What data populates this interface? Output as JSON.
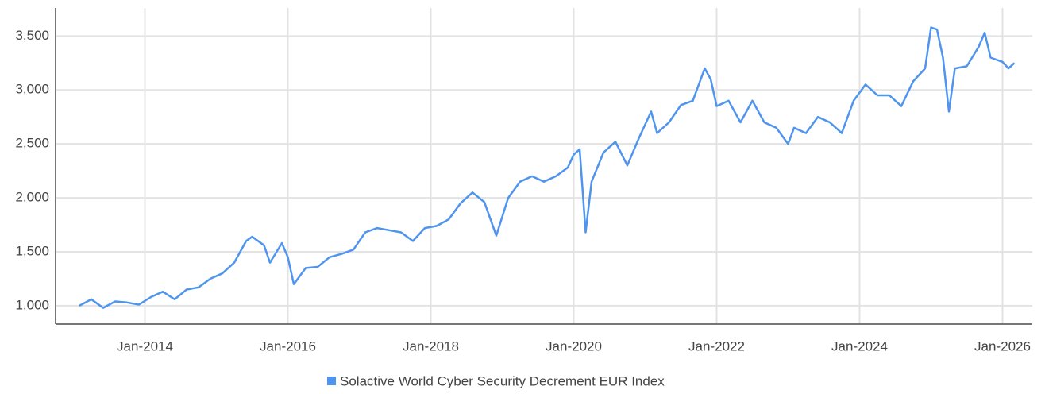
{
  "chart_data": {
    "type": "line",
    "x": [
      "2013-02",
      "2013-04",
      "2013-06",
      "2013-08",
      "2013-10",
      "2013-12",
      "2014-02",
      "2014-04",
      "2014-06",
      "2014-08",
      "2014-10",
      "2014-12",
      "2015-02",
      "2015-04",
      "2015-06",
      "2015-07",
      "2015-09",
      "2015-10",
      "2015-12",
      "2016-01",
      "2016-02",
      "2016-04",
      "2016-06",
      "2016-08",
      "2016-10",
      "2016-12",
      "2017-02",
      "2017-04",
      "2017-06",
      "2017-08",
      "2017-10",
      "2017-12",
      "2018-02",
      "2018-04",
      "2018-06",
      "2018-08",
      "2018-10",
      "2018-12",
      "2019-02",
      "2019-04",
      "2019-06",
      "2019-08",
      "2019-10",
      "2019-12",
      "2020-01",
      "2020-02",
      "2020-03",
      "2020-04",
      "2020-06",
      "2020-08",
      "2020-10",
      "2020-12",
      "2021-02",
      "2021-03",
      "2021-05",
      "2021-07",
      "2021-09",
      "2021-11",
      "2021-12",
      "2022-01",
      "2022-03",
      "2022-05",
      "2022-07",
      "2022-09",
      "2022-11",
      "2023-01",
      "2023-02",
      "2023-04",
      "2023-06",
      "2023-08",
      "2023-10",
      "2023-12",
      "2024-02",
      "2024-04",
      "2024-06",
      "2024-08",
      "2024-10",
      "2024-12",
      "2025-01",
      "2025-02",
      "2025-03",
      "2025-04",
      "2025-05",
      "2025-07",
      "2025-09",
      "2025-10",
      "2025-11",
      "2026-01",
      "2026-02",
      "2026-03"
    ],
    "series": [
      {
        "name": "Solactive World Cyber Security Decrement EUR Index",
        "color": "#4f95ee",
        "values": [
          1000,
          1060,
          980,
          1040,
          1030,
          1010,
          1080,
          1130,
          1060,
          1150,
          1170,
          1250,
          1300,
          1400,
          1600,
          1640,
          1560,
          1400,
          1580,
          1450,
          1200,
          1350,
          1360,
          1450,
          1480,
          1520,
          1680,
          1720,
          1700,
          1680,
          1600,
          1720,
          1740,
          1800,
          1950,
          2050,
          1960,
          1650,
          2000,
          2150,
          2200,
          2150,
          2200,
          2280,
          2400,
          2450,
          1680,
          2150,
          2420,
          2520,
          2300,
          2560,
          2800,
          2600,
          2700,
          2860,
          2900,
          3200,
          3100,
          2850,
          2900,
          2700,
          2900,
          2700,
          2650,
          2500,
          2650,
          2600,
          2750,
          2700,
          2600,
          2900,
          3050,
          2950,
          2950,
          2850,
          3080,
          3200,
          3580,
          3560,
          3300,
          2800,
          3200,
          3220,
          3400,
          3530,
          3300,
          3260,
          3200,
          3250
        ]
      }
    ],
    "xlim": [
      "2012-10",
      "2026-06"
    ],
    "xticks": [
      {
        "value": "2014-01",
        "label": "Jan-2014"
      },
      {
        "value": "2016-01",
        "label": "Jan-2016"
      },
      {
        "value": "2018-01",
        "label": "Jan-2018"
      },
      {
        "value": "2020-01",
        "label": "Jan-2020"
      },
      {
        "value": "2022-01",
        "label": "Jan-2022"
      },
      {
        "value": "2024-01",
        "label": "Jan-2024"
      },
      {
        "value": "2026-01",
        "label": "Jan-2026"
      }
    ],
    "ylim": [
      830,
      3760
    ],
    "yticks": [
      {
        "value": 1000,
        "label": "1,000"
      },
      {
        "value": 1500,
        "label": "1,500"
      },
      {
        "value": 2000,
        "label": "2,000"
      },
      {
        "value": 2500,
        "label": "2,500"
      },
      {
        "value": 3000,
        "label": "3,000"
      },
      {
        "value": 3500,
        "label": "3,500"
      }
    ],
    "grid": true
  }
}
